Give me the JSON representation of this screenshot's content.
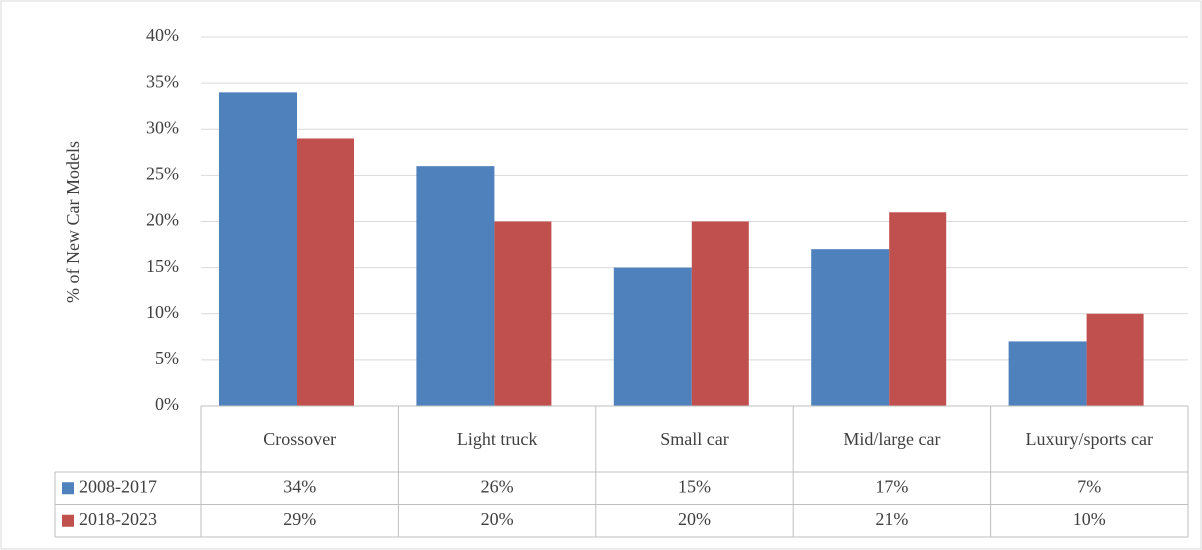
{
  "chart_data": {
    "type": "bar",
    "y_label": "% of  New Car Models",
    "categories": [
      "Crossover",
      "Light truck",
      "Small car",
      "Mid/large car",
      "Luxury/sports car"
    ],
    "series": [
      {
        "name": "2008-2017",
        "color": "#4f81bd",
        "values": [
          34,
          26,
          15,
          17,
          7
        ],
        "value_labels": [
          "34%",
          "26%",
          "15%",
          "17%",
          "7%"
        ]
      },
      {
        "name": "2018-2023",
        "color": "#c0504d",
        "values": [
          29,
          20,
          20,
          21,
          10
        ],
        "value_labels": [
          "29%",
          "20%",
          "20%",
          "21%",
          "10%"
        ]
      }
    ],
    "ylim": [
      0,
      40
    ],
    "yticks": [
      {
        "value": 0,
        "label": "0%"
      },
      {
        "value": 5,
        "label": "5%"
      },
      {
        "value": 10,
        "label": "10%"
      },
      {
        "value": 15,
        "label": "15%"
      },
      {
        "value": 20,
        "label": "20%"
      },
      {
        "value": 25,
        "label": "25%"
      },
      {
        "value": 30,
        "label": "30%"
      },
      {
        "value": 35,
        "label": "35%"
      },
      {
        "value": 40,
        "label": "40%"
      }
    ],
    "grid": true,
    "data_table": true
  }
}
